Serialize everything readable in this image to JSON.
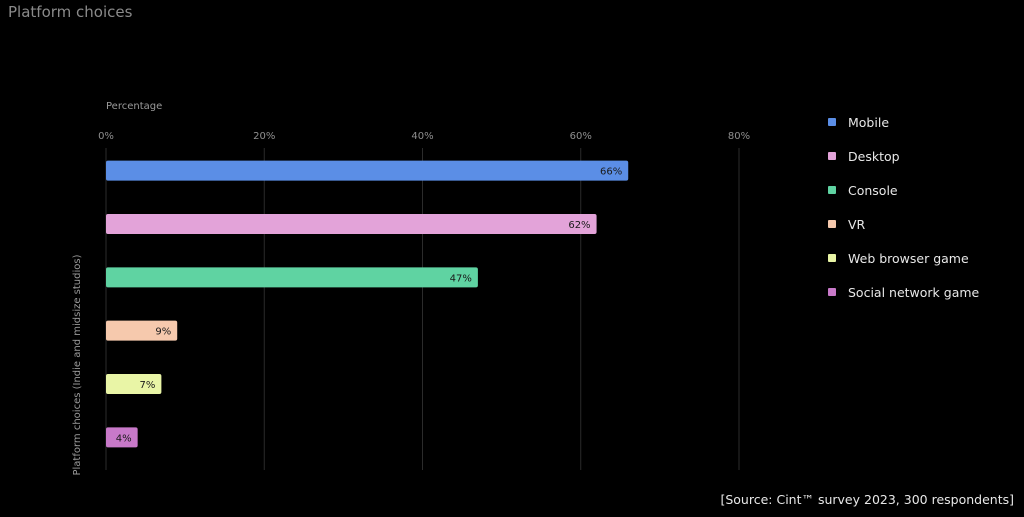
{
  "page": {
    "title": "Platform choices"
  },
  "chart_data": {
    "type": "bar",
    "orientation": "horizontal",
    "title": "Platform choices",
    "xlabel": "Percentage",
    "ylabel": "Platform choices (Indie and midsize studios)",
    "xlim": [
      0,
      80
    ],
    "x_ticks": [
      "0%",
      "20%",
      "40%",
      "60%",
      "80%"
    ],
    "x_axis_position": "top",
    "grid": true,
    "legend_position": "right",
    "categories": [
      "Mobile",
      "Desktop",
      "Console",
      "VR",
      "Web browser game",
      "Social network game"
    ],
    "values": [
      66,
      62,
      47,
      9,
      7,
      4
    ],
    "value_labels": [
      "66%",
      "62%",
      "47%",
      "9%",
      "7%",
      "4%"
    ],
    "colors": [
      "#5b8ee6",
      "#e3a3d9",
      "#5fd3a2",
      "#f6c9ad",
      "#e9f5a6",
      "#c879c9"
    ]
  },
  "source": "[Source: Cint™ survey 2023, 300 respondents]"
}
